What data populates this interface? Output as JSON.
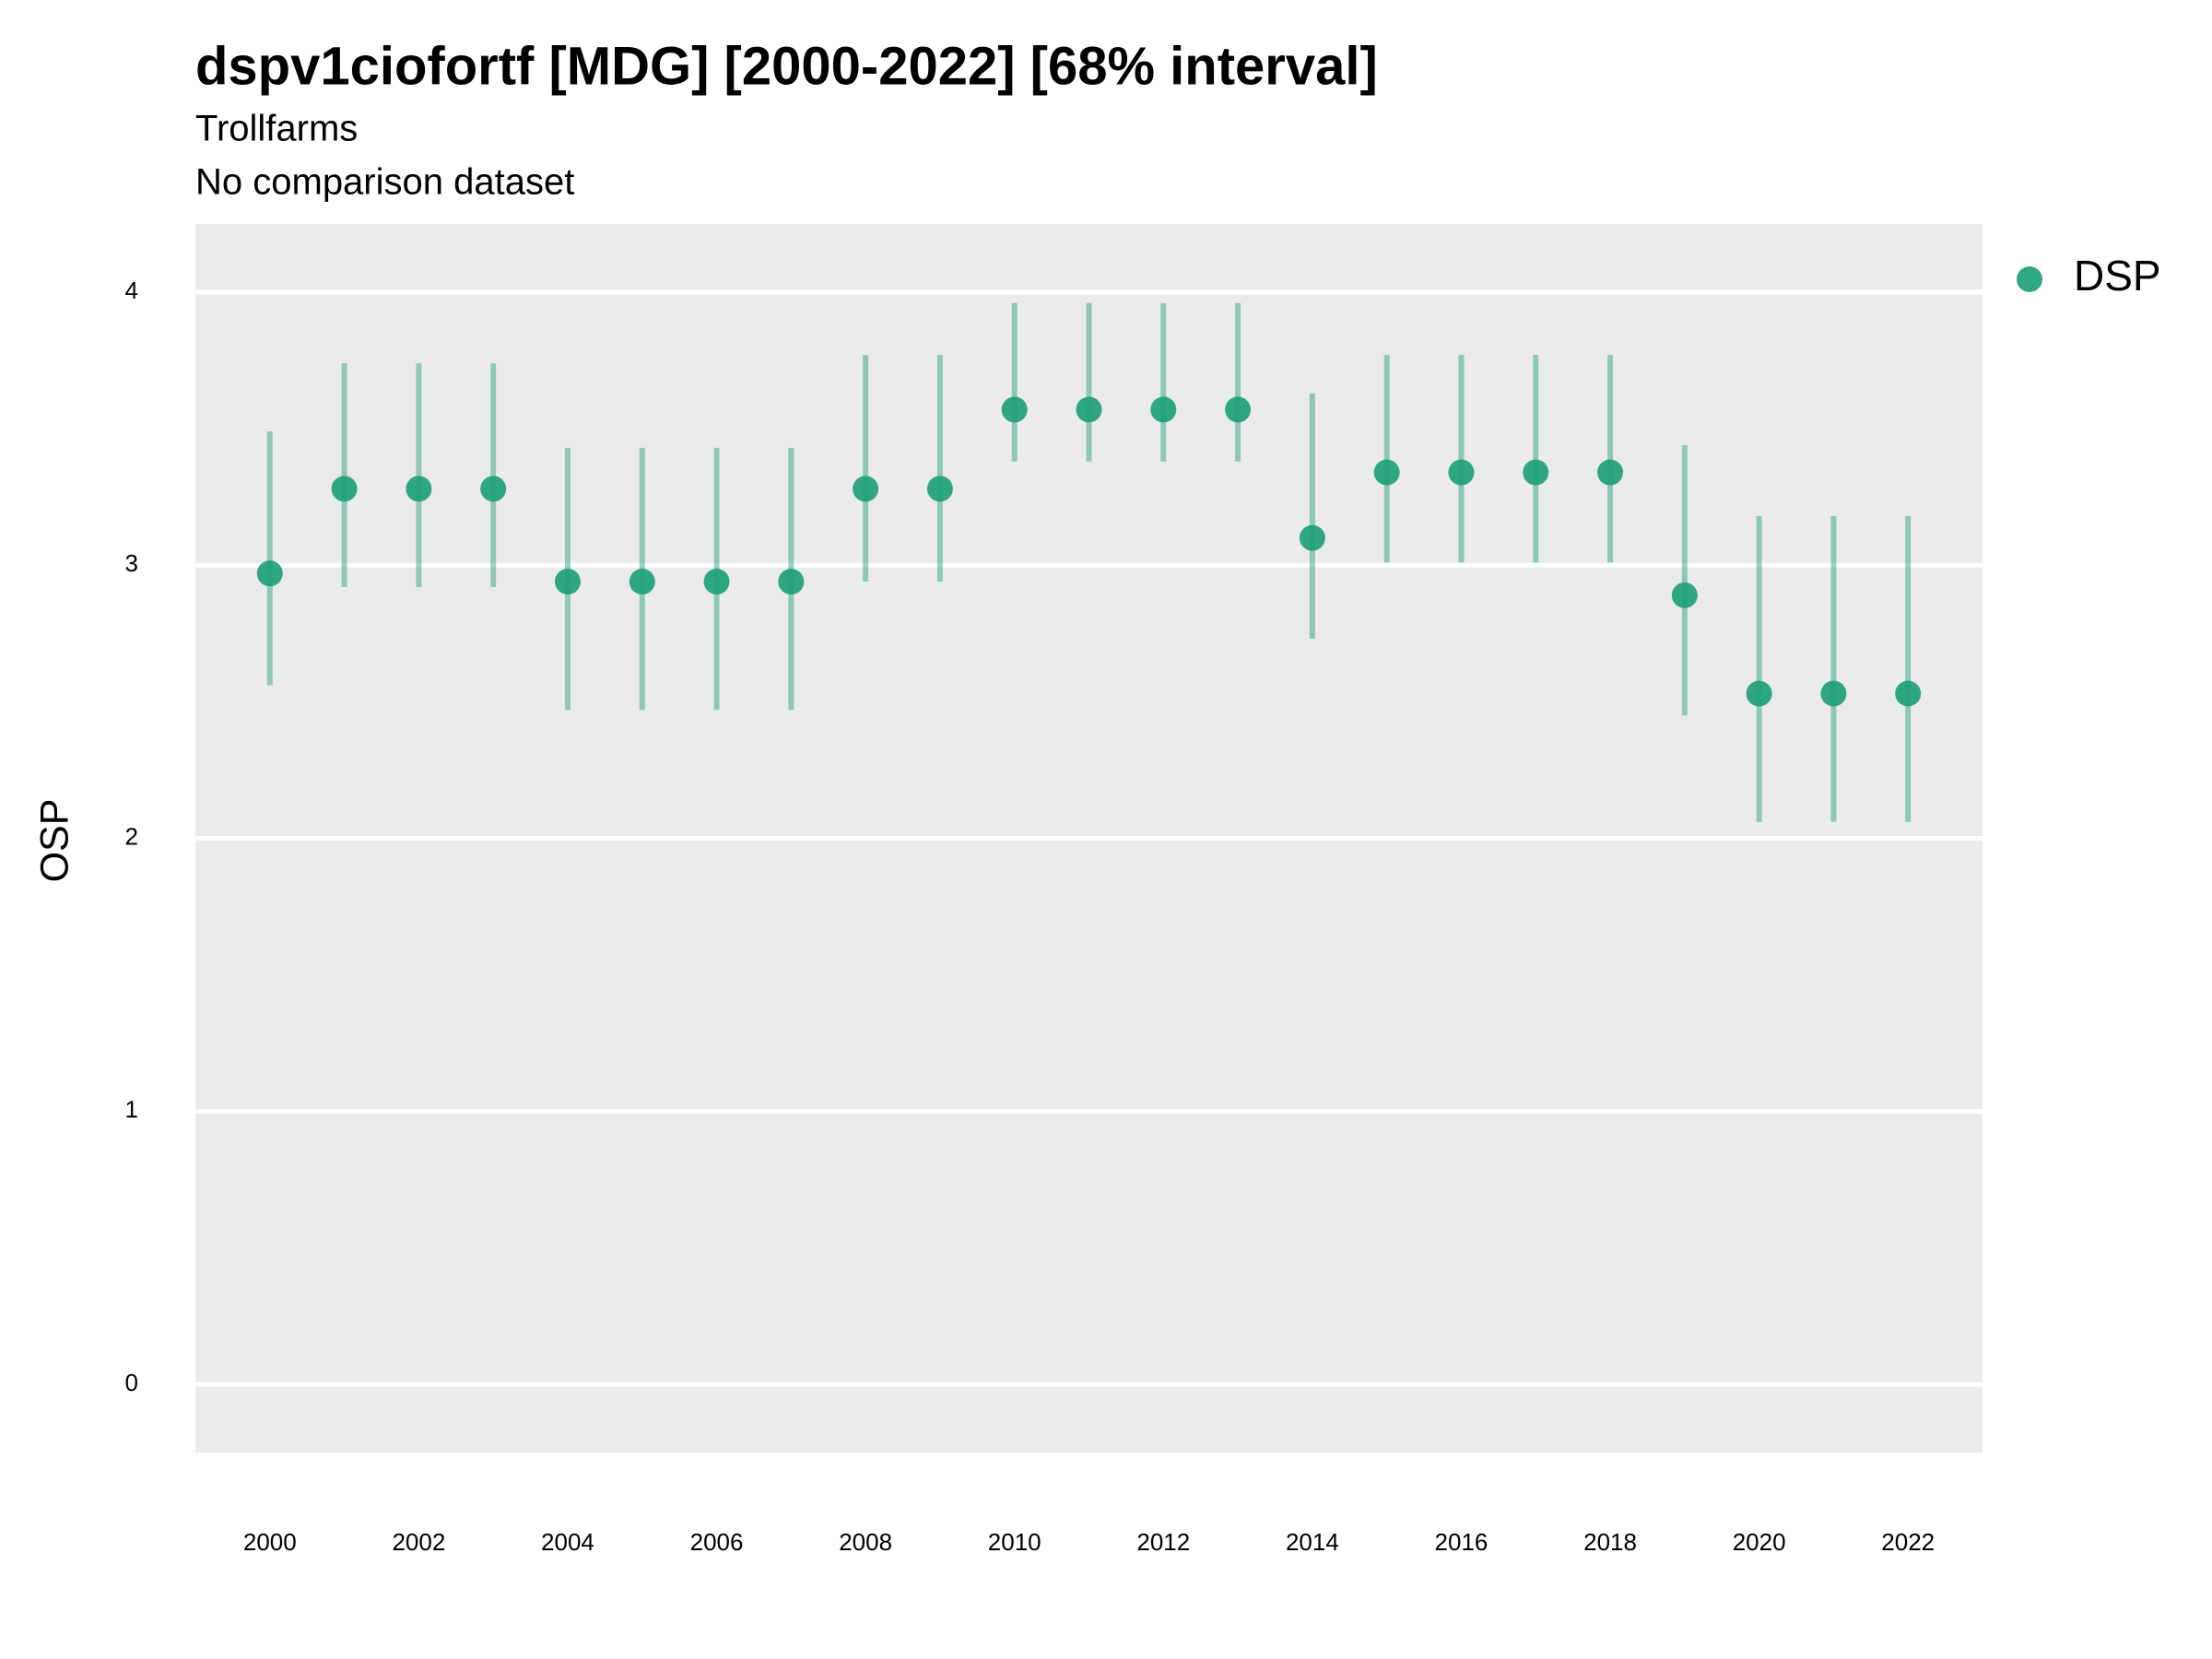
{
  "chart_data": {
    "type": "pointrange",
    "title": "dspv1ciofortf [MDG] [2000-2022] [68% interval]",
    "subtitle": [
      "Trollfarms",
      "No comparison dataset"
    ],
    "y_label": "OSP",
    "x": [
      2000,
      2001,
      2002,
      2003,
      2004,
      2005,
      2006,
      2007,
      2008,
      2009,
      2010,
      2011,
      2012,
      2013,
      2014,
      2015,
      2016,
      2017,
      2018,
      2019,
      2020,
      2021,
      2022
    ],
    "series": [
      {
        "name": "DSP",
        "color": "#1b9e77",
        "values": [
          2.97,
          3.28,
          3.28,
          3.28,
          2.94,
          2.94,
          2.94,
          2.94,
          3.28,
          3.28,
          3.57,
          3.57,
          3.57,
          3.57,
          3.1,
          3.34,
          3.34,
          3.34,
          3.34,
          2.89,
          2.53,
          2.53,
          2.53
        ],
        "lower": [
          2.56,
          2.92,
          2.92,
          2.92,
          2.47,
          2.47,
          2.47,
          2.47,
          2.94,
          2.94,
          3.38,
          3.38,
          3.38,
          3.38,
          2.73,
          3.01,
          3.01,
          3.01,
          3.01,
          2.45,
          2.06,
          2.06,
          2.06
        ],
        "upper": [
          3.49,
          3.74,
          3.74,
          3.74,
          3.43,
          3.43,
          3.43,
          3.43,
          3.77,
          3.77,
          3.96,
          3.96,
          3.96,
          3.96,
          3.63,
          3.77,
          3.77,
          3.77,
          3.77,
          3.44,
          3.18,
          3.18,
          3.18
        ]
      }
    ],
    "xlim": [
      1999,
      2023
    ],
    "xticks": [
      2000,
      2002,
      2004,
      2006,
      2008,
      2010,
      2012,
      2014,
      2016,
      2018,
      2020,
      2022
    ],
    "ylim": [
      -0.25,
      4.25
    ],
    "yticks": [
      0,
      1,
      2,
      3,
      4
    ],
    "grid": true,
    "legend": "right"
  }
}
